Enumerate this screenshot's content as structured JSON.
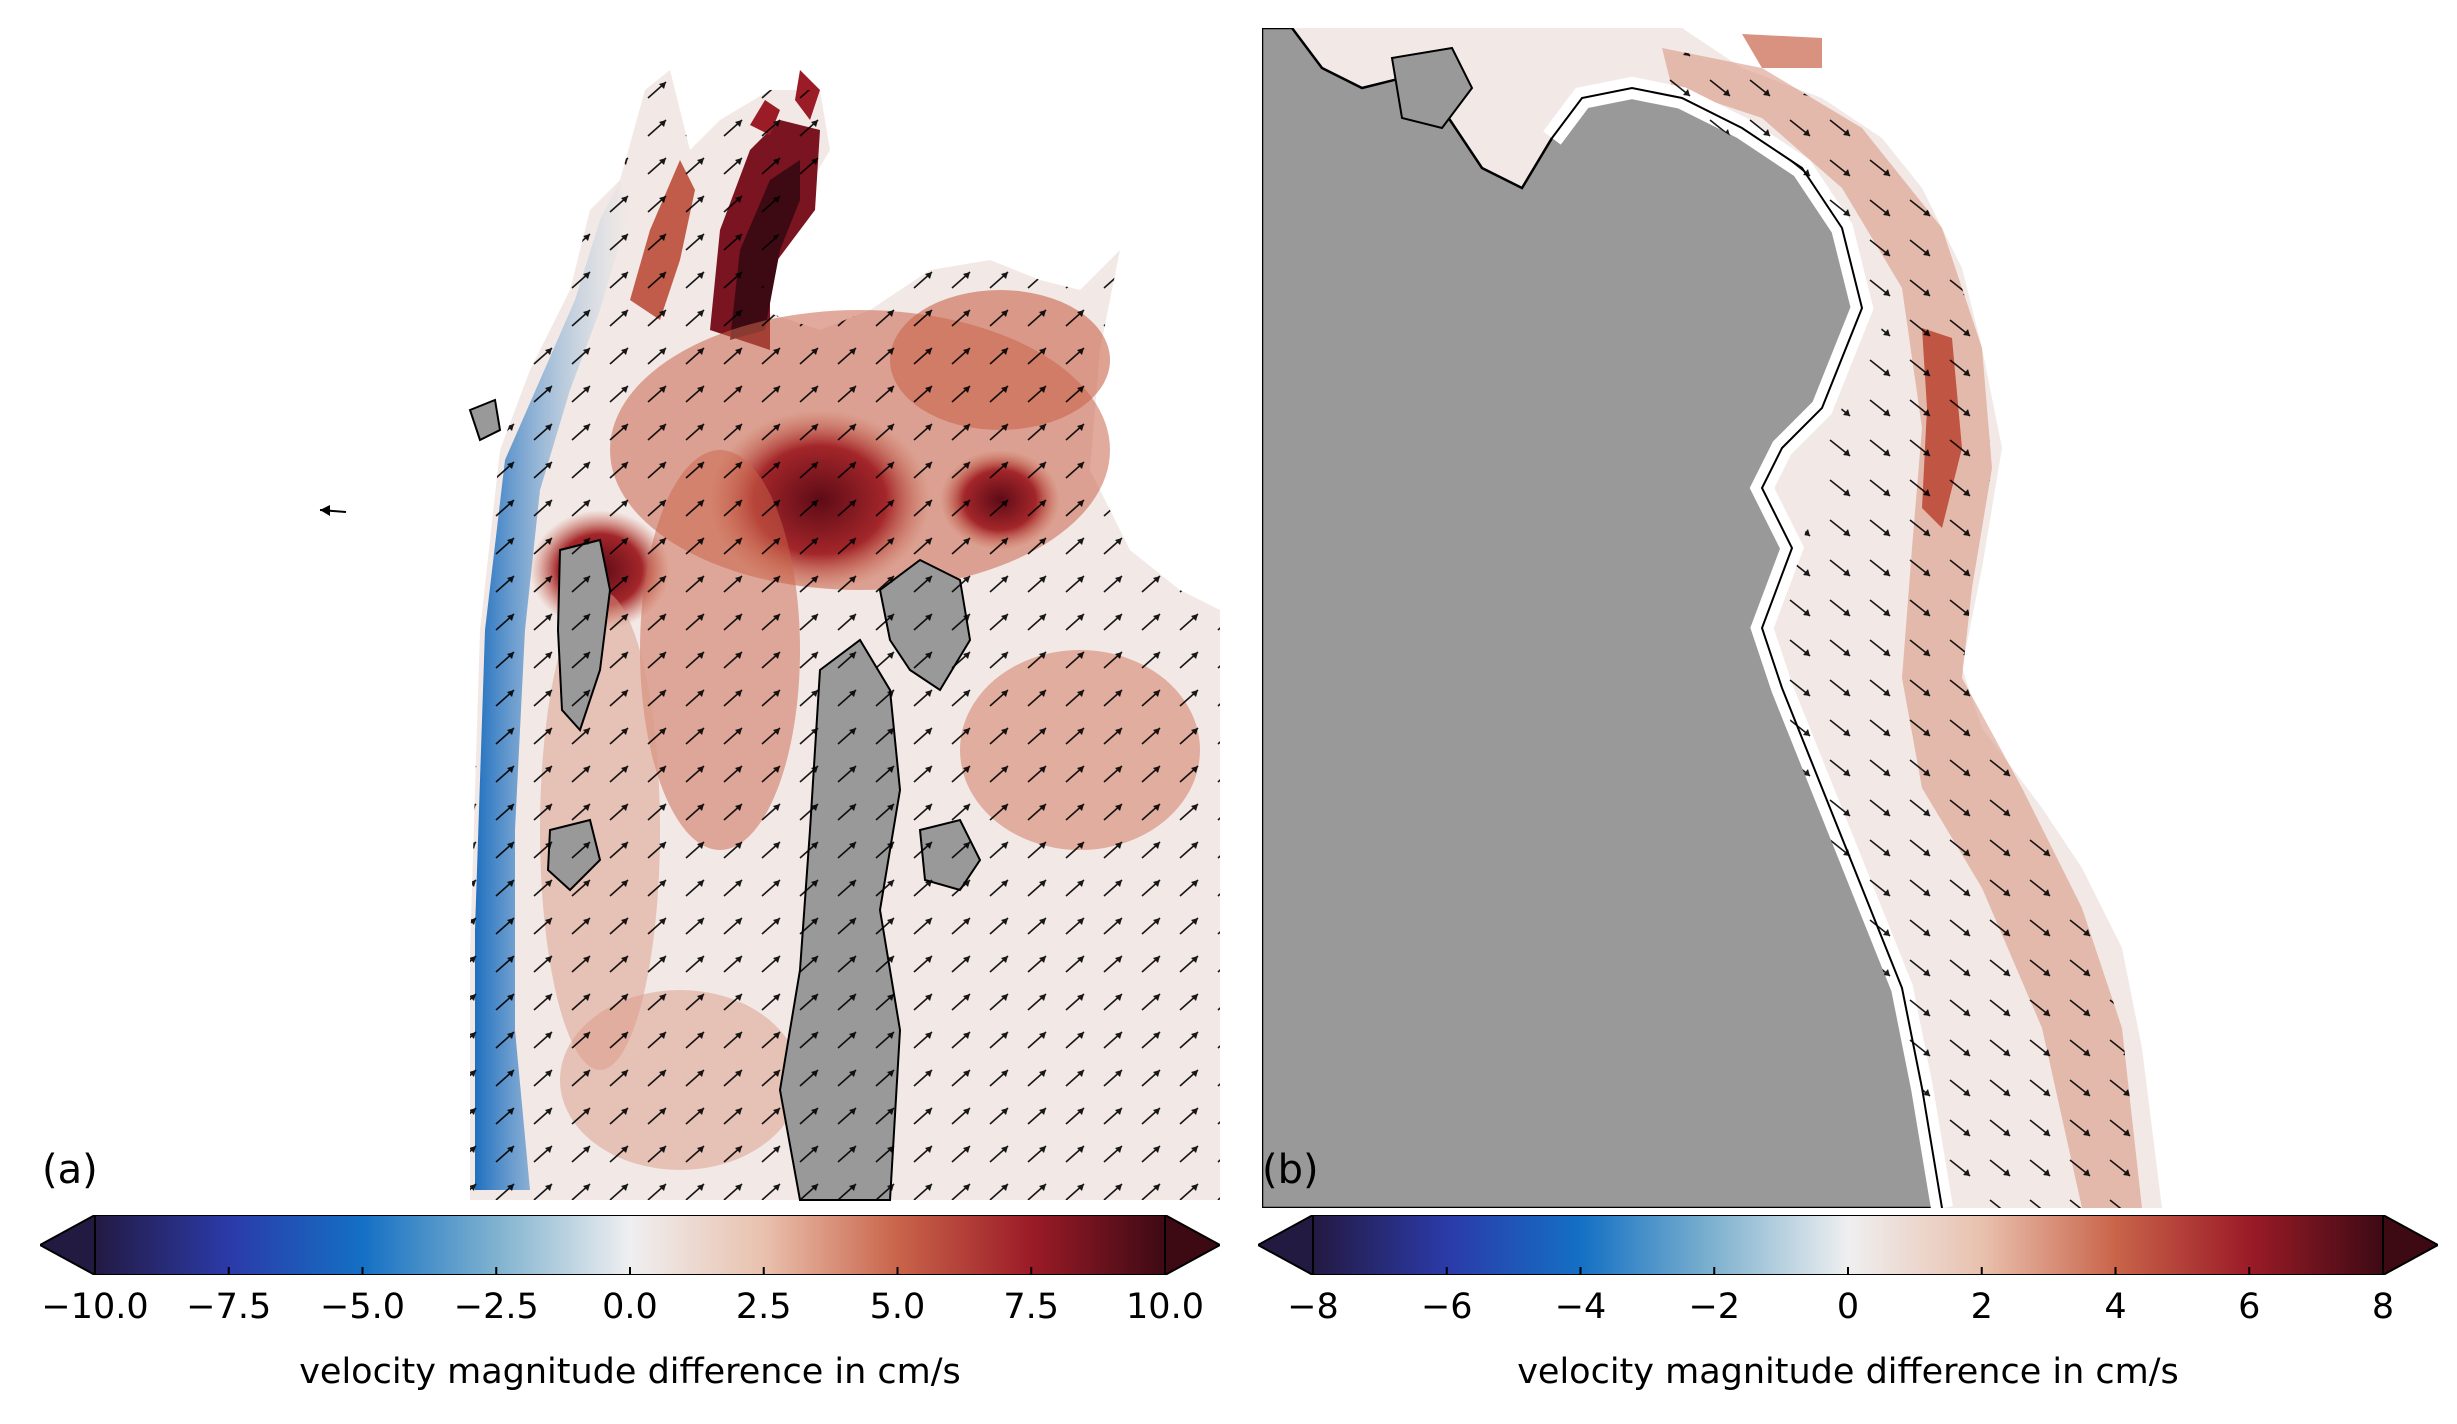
{
  "panels": [
    {
      "id": "a",
      "label": "(a)",
      "colorbar": {
        "title": "velocity magnitude difference in cm/s",
        "ticks": [
          "−10.0",
          "−7.5",
          "−5.0",
          "−2.5",
          "0.0",
          "2.5",
          "5.0",
          "7.5",
          "10.0"
        ],
        "tick_values": [
          -10,
          -7.5,
          -5,
          -2.5,
          0,
          2.5,
          5,
          7.5,
          10
        ],
        "range": [
          -10,
          10
        ],
        "extend": "both",
        "colormap": [
          "#231a42",
          "#2b3aa8",
          "#1470c4",
          "#7fb2cf",
          "#efeff0",
          "#e9c1ae",
          "#c9644a",
          "#9b1b27",
          "#3d0a14"
        ]
      }
    },
    {
      "id": "b",
      "label": "(b)",
      "colorbar": {
        "title": "velocity magnitude difference in cm/s",
        "ticks": [
          "−8",
          "−6",
          "−4",
          "−2",
          "0",
          "2",
          "4",
          "6",
          "8"
        ],
        "tick_values": [
          -8,
          -6,
          -4,
          -2,
          0,
          2,
          4,
          6,
          8
        ],
        "range": [
          -8,
          8
        ],
        "extend": "both",
        "colormap": [
          "#231a42",
          "#2b3aa8",
          "#1470c4",
          "#7fb2cf",
          "#efeff0",
          "#e9c1ae",
          "#c9644a",
          "#9b1b27",
          "#3d0a14"
        ]
      }
    }
  ],
  "colors": {
    "land": "#999999",
    "water_neutral": "#f2e9e6",
    "positive": "#b8432f",
    "strong_positive": "#5e0b16",
    "negative": "#1f6fc0",
    "arrow": "#000000"
  }
}
